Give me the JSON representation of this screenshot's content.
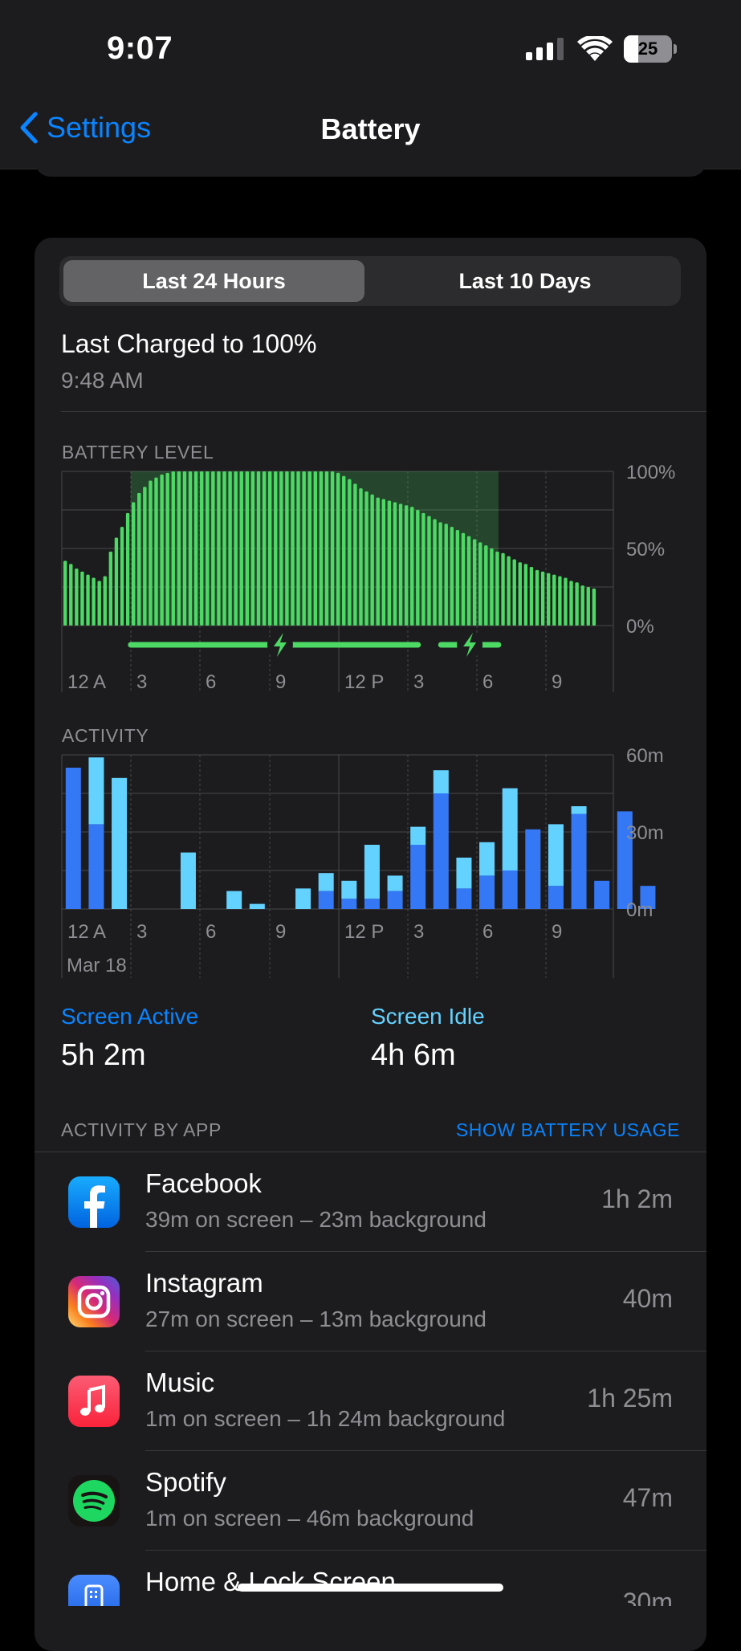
{
  "status_bar": {
    "time": "9:07",
    "battery_percent": "25"
  },
  "nav": {
    "back_label": "Settings",
    "title": "Battery"
  },
  "segment": {
    "options": [
      "Last 24 Hours",
      "Last 10 Days"
    ],
    "selected": 0
  },
  "last_charged": {
    "title": "Last Charged to 100%",
    "time": "9:48 AM"
  },
  "battery_chart": {
    "label": "BATTERY LEVEL",
    "y_ticks": [
      "100%",
      "50%",
      "0%"
    ],
    "x_ticks": [
      "12 A",
      "3",
      "6",
      "9",
      "12 P",
      "3",
      "6",
      "9"
    ]
  },
  "activity_chart": {
    "label": "ACTIVITY",
    "y_ticks": [
      "60m",
      "30m",
      "0m"
    ],
    "x_ticks": [
      "12 A",
      "3",
      "6",
      "9",
      "12 P",
      "3",
      "6",
      "9"
    ],
    "date_label": "Mar 18"
  },
  "chart_data": [
    {
      "type": "bar",
      "title": "BATTERY LEVEL",
      "x_ticks": [
        "12 A",
        "3",
        "6",
        "9",
        "12 P",
        "3",
        "6",
        "9"
      ],
      "ylim": [
        0,
        100
      ],
      "y_ticks": [
        "100%",
        "50%",
        "0%"
      ],
      "unit": "%",
      "values": [
        42,
        40,
        37,
        35,
        33,
        31,
        29,
        32,
        48,
        57,
        64,
        73,
        80,
        86,
        90,
        94,
        96,
        98,
        99,
        100,
        100,
        100,
        100,
        100,
        100,
        100,
        100,
        100,
        100,
        100,
        100,
        100,
        100,
        100,
        100,
        100,
        100,
        100,
        100,
        100,
        100,
        100,
        100,
        100,
        100,
        100,
        100,
        100,
        99,
        97,
        95,
        92,
        89,
        87,
        85,
        83,
        82,
        81,
        80,
        79,
        78,
        77,
        75,
        73,
        71,
        69,
        67,
        66,
        64,
        62,
        60,
        58,
        56,
        54,
        52,
        50,
        48,
        47,
        45,
        43,
        41,
        40,
        38,
        36,
        35,
        34,
        33,
        32,
        31,
        29,
        28,
        26,
        25,
        24
      ],
      "charging_intervals": [
        [
          3,
          15.5
        ],
        [
          16.5,
          19
        ]
      ],
      "color": "#4cd964"
    },
    {
      "type": "bar",
      "title": "ACTIVITY",
      "x_ticks": [
        "12 A",
        "3",
        "6",
        "9",
        "12 P",
        "3",
        "6",
        "9"
      ],
      "ylim": [
        0,
        60
      ],
      "y_ticks": [
        "60m",
        "30m",
        "0m"
      ],
      "series": [
        {
          "name": "Screen Active",
          "color": "#3478f6",
          "values": [
            55,
            33,
            0,
            0,
            0,
            0,
            0,
            0,
            0,
            0,
            0,
            7,
            4,
            4,
            7,
            25,
            45,
            8,
            13,
            15,
            31,
            9,
            37,
            11,
            38,
            9
          ]
        },
        {
          "name": "Screen Idle",
          "color": "#64d2ff",
          "values": [
            0,
            26,
            51,
            0,
            0,
            22,
            0,
            7,
            2,
            0,
            8,
            7,
            7,
            21,
            6,
            7,
            9,
            12,
            13,
            32,
            0,
            24,
            3,
            0,
            0,
            0
          ]
        }
      ]
    }
  ],
  "screen_stats": {
    "active_label": "Screen Active",
    "active_value": "5h 2m",
    "idle_label": "Screen Idle",
    "idle_value": "4h 6m"
  },
  "activity_by_app": {
    "label": "ACTIVITY BY APP",
    "link": "SHOW BATTERY USAGE"
  },
  "apps": [
    {
      "name": "Facebook",
      "detail": "39m on screen – 23m background",
      "time": "1h 2m",
      "icon": "facebook-icon"
    },
    {
      "name": "Instagram",
      "detail": "27m on screen – 13m background",
      "time": "40m",
      "icon": "instagram-icon"
    },
    {
      "name": "Music",
      "detail": "1m on screen – 1h 24m background",
      "time": "1h 25m",
      "icon": "music-icon"
    },
    {
      "name": "Spotify",
      "detail": "1m on screen – 46m background",
      "time": "47m",
      "icon": "spotify-icon"
    },
    {
      "name": "Home & Lock Screen",
      "detail": "",
      "time": "30m",
      "icon": "home-lock-screen-icon"
    }
  ]
}
